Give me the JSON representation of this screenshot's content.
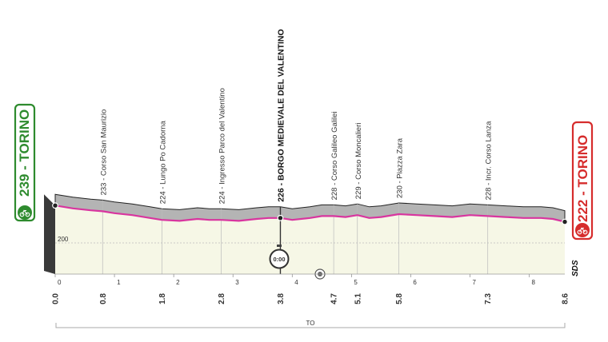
{
  "chart_data": {
    "type": "area",
    "title": "",
    "start": {
      "altitude": "239",
      "name": "TORINO",
      "color": "#2e8b2e"
    },
    "finish": {
      "altitude": "222",
      "name": "TORINO",
      "color": "#d62c2c"
    },
    "km_marks": [
      "0.0",
      "0.8",
      "1.8",
      "2.8",
      "3.8",
      "4.7",
      "5.1",
      "5.8",
      "7.3",
      "8.6"
    ],
    "km_values": [
      0.0,
      0.8,
      1.8,
      2.8,
      3.8,
      4.7,
      5.1,
      5.8,
      7.3,
      8.6
    ],
    "km_ticks": [
      "0",
      "1",
      "2",
      "3",
      "4",
      "5",
      "6",
      "7",
      "8"
    ],
    "waypoints": [
      {
        "label": "233 - Corso San Maurizio",
        "km": 0.8,
        "bold": false
      },
      {
        "label": "224 - Lungo Po Cadorna",
        "km": 1.8,
        "bold": false
      },
      {
        "label": "224 - Ingresso Parco del Valentino",
        "km": 2.8,
        "bold": false
      },
      {
        "label": "226 - BORGO MEDIEVALE DEL VALENTINO",
        "km": 3.8,
        "bold": true
      },
      {
        "label": "228 - Corso Galileo Galilei",
        "km": 4.7,
        "bold": false
      },
      {
        "label": "229 - Corso Moncalieri",
        "km": 5.1,
        "bold": false
      },
      {
        "label": "230 - Piazza Zara",
        "km": 5.8,
        "bold": false
      },
      {
        "label": "228 - Incr. Corso Lanza",
        "km": 7.3,
        "bold": false
      }
    ],
    "profile": {
      "km": [
        0.0,
        0.3,
        0.6,
        0.8,
        1.0,
        1.3,
        1.6,
        1.8,
        2.1,
        2.4,
        2.6,
        2.8,
        3.1,
        3.4,
        3.6,
        3.8,
        4.0,
        4.3,
        4.5,
        4.7,
        4.9,
        5.1,
        5.3,
        5.5,
        5.8,
        6.1,
        6.4,
        6.7,
        7.0,
        7.3,
        7.6,
        7.9,
        8.2,
        8.4,
        8.6
      ],
      "altitude": [
        239,
        236,
        234,
        233,
        231,
        229,
        226,
        224,
        223,
        225,
        224,
        224,
        223,
        225,
        226,
        226,
        224,
        226,
        228,
        228,
        227,
        229,
        226,
        227,
        230,
        229,
        228,
        227,
        229,
        228,
        227,
        226,
        226,
        225,
        222
      ]
    },
    "ylabel": "200",
    "ylim": [
      150,
      260
    ],
    "time_check": {
      "km": 3.8,
      "label": "0:00"
    },
    "footer": "TO",
    "brand": "SDS",
    "colors": {
      "line": "#d8359f",
      "fill": "#f6f7e6",
      "shadow": "#b4b4b4"
    }
  }
}
